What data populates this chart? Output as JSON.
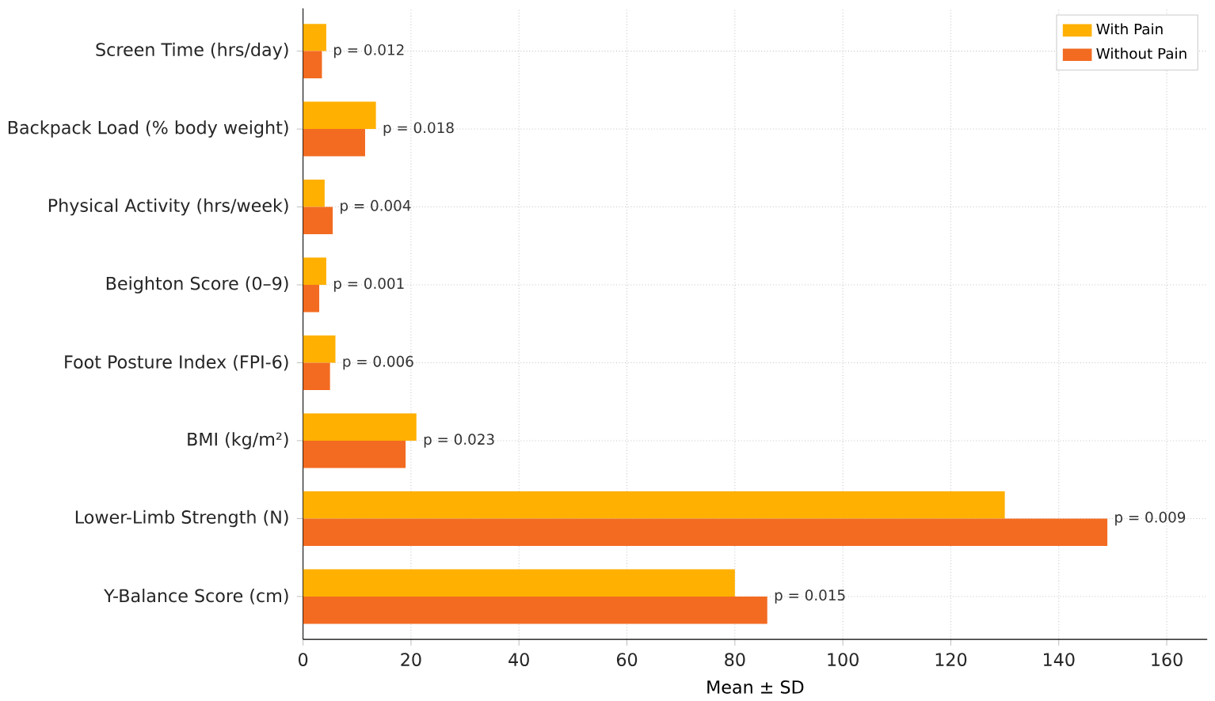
{
  "chart_data": {
    "type": "bar",
    "orientation": "horizontal",
    "xlabel": "Mean ± SD",
    "categories": [
      "Screen Time (hrs/day)",
      "Backpack Load (% body weight)",
      "Physical Activity (hrs/week)",
      "Beighton Score (0–9)",
      "Foot Posture Index (FPI-6)",
      "BMI (kg/m²)",
      "Lower-Limb Strength (N)",
      "Y-Balance Score (cm)"
    ],
    "series": [
      {
        "name": "With Pain",
        "color": "#ffb000",
        "values": [
          4.3,
          13.5,
          4.0,
          4.3,
          6.0,
          21,
          130,
          80
        ]
      },
      {
        "name": "Without Pain",
        "color": "#f26b21",
        "values": [
          3.5,
          11.5,
          5.5,
          3.0,
          5.0,
          19,
          149,
          86
        ]
      }
    ],
    "annotations": [
      "p = 0.012",
      "p = 0.018",
      "p = 0.004",
      "p = 0.001",
      "p = 0.006",
      "p = 0.023",
      "p = 0.009",
      "p = 0.015"
    ],
    "xlim": [
      0,
      167.5
    ],
    "xticks": [
      0,
      20,
      40,
      60,
      80,
      100,
      120,
      140,
      160
    ],
    "grid": true,
    "legend": "top right"
  }
}
